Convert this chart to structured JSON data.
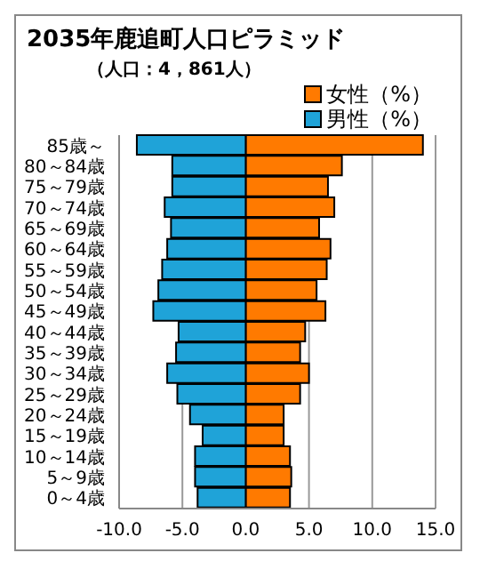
{
  "chart_data": {
    "type": "bar",
    "orientation": "horizontal",
    "title": "2035年鹿追町人口ピラミッド",
    "subtitle": "（人口：4，861人）",
    "categories": [
      "85歳～",
      "80～84歳",
      "75～79歳",
      "70～74歳",
      "65～69歳",
      "60～64歳",
      "55～59歳",
      "50～54歳",
      "45～49歳",
      "40～44歳",
      "35～39歳",
      "30～34歳",
      "25～29歳",
      "20～24歳",
      "15～19歳",
      "10～14歳",
      "5～9歳",
      "0～4歳"
    ],
    "series": [
      {
        "name": "女性（%）",
        "color": "#ff7a00",
        "values": [
          14.0,
          7.6,
          6.5,
          7.0,
          5.8,
          6.7,
          6.4,
          5.6,
          6.3,
          4.7,
          4.3,
          5.0,
          4.3,
          3.0,
          3.0,
          3.5,
          3.6,
          3.5
        ]
      },
      {
        "name": "男性（%）",
        "color": "#1fa3d8",
        "values": [
          -8.6,
          -5.8,
          -5.8,
          -6.4,
          -5.9,
          -6.2,
          -6.6,
          -6.9,
          -7.3,
          -5.3,
          -5.5,
          -6.2,
          -5.4,
          -4.4,
          -3.4,
          -4.0,
          -4.0,
          -3.8
        ]
      }
    ],
    "xlim": [
      -10,
      15
    ],
    "xticks": [
      {
        "value": -10,
        "label": "-10.0"
      },
      {
        "value": -5,
        "label": "-5.0"
      },
      {
        "value": 0,
        "label": "0.0"
      },
      {
        "value": 5,
        "label": "5.0"
      },
      {
        "value": 10,
        "label": "10.0"
      },
      {
        "value": 15,
        "label": "15.0"
      }
    ],
    "grid": "x",
    "legend": "top right",
    "stacked": true
  }
}
